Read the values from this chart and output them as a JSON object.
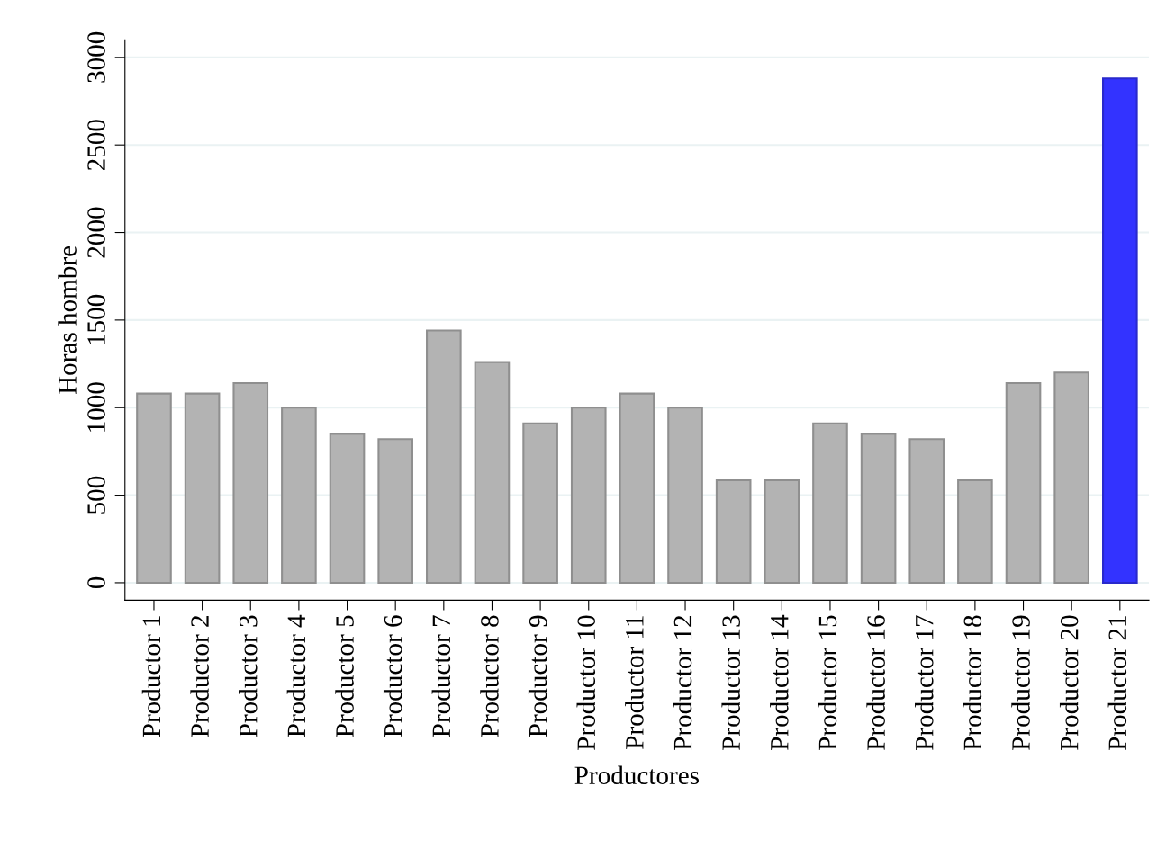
{
  "chart_data": {
    "type": "bar",
    "xlabel": "Productores",
    "ylabel": "Horas hombre",
    "categories": [
      "Productor 1",
      "Productor 2",
      "Productor 3",
      "Productor 4",
      "Productor 5",
      "Productor 6",
      "Productor 7",
      "Productor 8",
      "Productor 9",
      "Productor 10",
      "Productor 11",
      "Productor 12",
      "Productor 13",
      "Productor 14",
      "Productor 15",
      "Productor 16",
      "Productor 17",
      "Productor 18",
      "Productor 19",
      "Productor 20",
      "Productor 21"
    ],
    "values": [
      1080,
      1080,
      1140,
      1000,
      850,
      820,
      1440,
      1260,
      910,
      1000,
      1080,
      1000,
      585,
      585,
      910,
      850,
      820,
      585,
      1140,
      1200,
      2880
    ],
    "colors": [
      "#b3b3b3",
      "#b3b3b3",
      "#b3b3b3",
      "#b3b3b3",
      "#b3b3b3",
      "#b3b3b3",
      "#b3b3b3",
      "#b3b3b3",
      "#b3b3b3",
      "#b3b3b3",
      "#b3b3b3",
      "#b3b3b3",
      "#b3b3b3",
      "#b3b3b3",
      "#b3b3b3",
      "#b3b3b3",
      "#b3b3b3",
      "#b3b3b3",
      "#b3b3b3",
      "#b3b3b3",
      "#3333ff"
    ],
    "ylim": [
      -100,
      3100
    ],
    "yticks": [
      0,
      500,
      1000,
      1500,
      2000,
      2500,
      3000
    ],
    "grid": "y"
  }
}
